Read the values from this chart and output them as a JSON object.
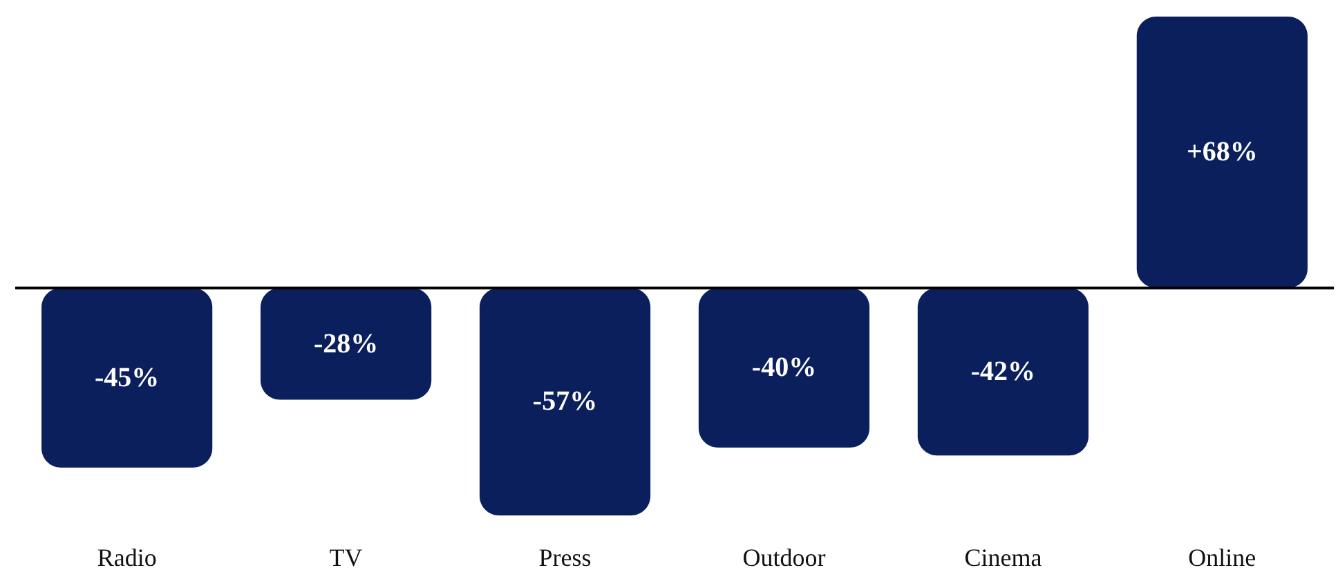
{
  "chart_data": {
    "type": "bar",
    "categories": [
      "Radio",
      "TV",
      "Press",
      "Outdoor",
      "Cinema",
      "Online"
    ],
    "values": [
      -45,
      -28,
      -57,
      -40,
      -42,
      68
    ],
    "value_labels": [
      "-45%",
      "-28%",
      "-57%",
      "-40%",
      "-42%",
      "+68%"
    ],
    "color": "#0b1f5c"
  }
}
